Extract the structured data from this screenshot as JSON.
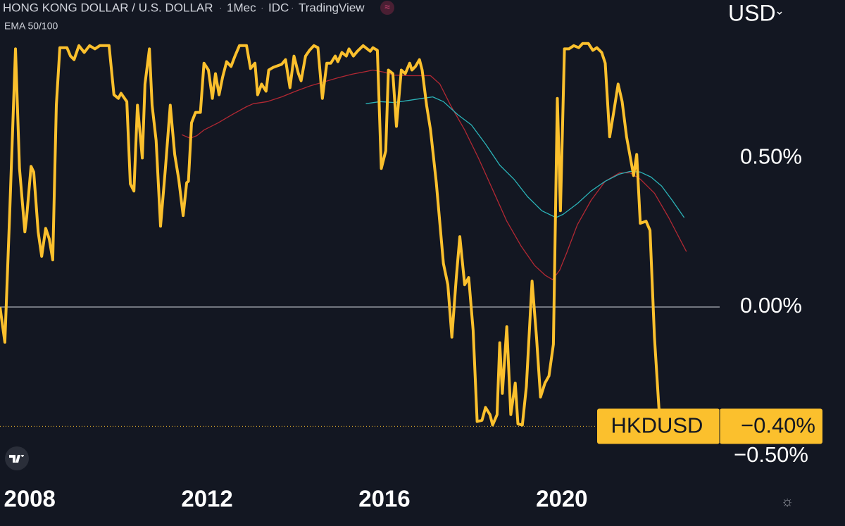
{
  "chart_data": {
    "type": "line",
    "title": "HONG KONG DOLLAR / U.S. DOLLAR",
    "interval": "1Mec",
    "source": "IDC",
    "brand": "TradingView",
    "indicator": "EMA 50/100",
    "currency": "USD",
    "xlim": [
      2007.33,
      2023.56
    ],
    "ylim": [
      -0.6,
      1.03
    ],
    "xticks": [
      2008,
      2012,
      2016,
      2020
    ],
    "yticks": [
      {
        "value": 0.5,
        "label": "0.50%"
      },
      {
        "value": 0,
        "label": "0.00%"
      },
      {
        "value": -0.5,
        "label": "−0.50%"
      }
    ],
    "zero_line": true,
    "price_label": {
      "value": -0.4,
      "label": "−0.40%"
    },
    "series": [
      {
        "name": "HKDUSD",
        "color": "#fbc02d",
        "width": 4,
        "x": [
          2007.33,
          2007.44,
          2007.55,
          2007.68,
          2007.77,
          2007.89,
          2007.93,
          2008.03,
          2008.09,
          2008.19,
          2008.27,
          2008.36,
          2008.44,
          2008.52,
          2008.6,
          2008.68,
          2008.84,
          2008.92,
          2009.0,
          2009.11,
          2009.23,
          2009.35,
          2009.47,
          2009.58,
          2009.79,
          2009.9,
          2010.0,
          2010.06,
          2010.19,
          2010.27,
          2010.35,
          2010.43,
          2010.54,
          2010.6,
          2010.7,
          2010.76,
          2010.85,
          2010.95,
          2011.06,
          2011.17,
          2011.27,
          2011.36,
          2011.46,
          2011.54,
          2011.58,
          2011.65,
          2011.74,
          2011.85,
          2011.93,
          2012.03,
          2012.12,
          2012.19,
          2012.27,
          2012.35,
          2012.44,
          2012.54,
          2012.63,
          2012.73,
          2012.89,
          2012.98,
          2013.08,
          2013.14,
          2013.23,
          2013.33,
          2013.39,
          2013.49,
          2013.58,
          2013.68,
          2013.77,
          2013.87,
          2013.96,
          2014.06,
          2014.12,
          2014.22,
          2014.31,
          2014.41,
          2014.5,
          2014.6,
          2014.7,
          2014.79,
          2014.89,
          2014.95,
          2015.04,
          2015.14,
          2015.2,
          2015.3,
          2015.39,
          2015.52,
          2015.68,
          2015.74,
          2015.84,
          2015.93,
          2016.03,
          2016.09,
          2016.19,
          2016.27,
          2016.38,
          2016.47,
          2016.57,
          2016.62,
          2016.7,
          2016.79,
          2016.85,
          2016.95,
          2017.04,
          2017.17,
          2017.33,
          2017.43,
          2017.52,
          2017.62,
          2017.7,
          2017.81,
          2017.9,
          2018.0,
          2018.09,
          2018.2,
          2018.28,
          2018.38,
          2018.44,
          2018.54,
          2018.6,
          2018.66,
          2018.76,
          2018.85,
          2018.95,
          2019.01,
          2019.11,
          2019.2,
          2019.33,
          2019.43,
          2019.52,
          2019.62,
          2019.71,
          2019.81,
          2019.9,
          2019.97,
          2020.06,
          2020.16,
          2020.27,
          2020.38,
          2020.47,
          2020.6,
          2020.7,
          2020.79,
          2020.9,
          2020.98,
          2021.08,
          2021.17,
          2021.27,
          2021.36,
          2021.46,
          2021.62,
          2021.69,
          2021.77,
          2021.9,
          2021.99,
          2022.09,
          2022.19,
          2022.25
        ],
        "values": [
          0.0,
          -0.118,
          0.323,
          0.866,
          0.465,
          0.252,
          0.3,
          0.472,
          0.453,
          0.252,
          0.17,
          0.264,
          0.229,
          0.158,
          0.677,
          0.87,
          0.87,
          0.842,
          0.83,
          0.877,
          0.854,
          0.877,
          0.866,
          0.877,
          0.877,
          0.712,
          0.7,
          0.717,
          0.689,
          0.413,
          0.389,
          0.677,
          0.5,
          0.748,
          0.866,
          0.677,
          0.559,
          0.271,
          0.465,
          0.677,
          0.512,
          0.429,
          0.307,
          0.417,
          0.422,
          0.618,
          0.653,
          0.653,
          0.818,
          0.795,
          0.7,
          0.783,
          0.712,
          0.771,
          0.823,
          0.807,
          0.842,
          0.877,
          0.877,
          0.8,
          0.818,
          0.712,
          0.748,
          0.724,
          0.795,
          0.804,
          0.809,
          0.814,
          0.83,
          0.736,
          0.842,
          0.783,
          0.759,
          0.842,
          0.861,
          0.877,
          0.87,
          0.7,
          0.818,
          0.818,
          0.842,
          0.823,
          0.854,
          0.842,
          0.866,
          0.842,
          0.858,
          0.877,
          0.858,
          0.87,
          0.861,
          0.465,
          0.524,
          0.795,
          0.783,
          0.606,
          0.795,
          0.783,
          0.818,
          0.795,
          0.807,
          0.83,
          0.795,
          0.677,
          0.594,
          0.417,
          0.146,
          0.075,
          -0.101,
          0.099,
          0.236,
          0.075,
          0.099,
          -0.078,
          -0.384,
          -0.38,
          -0.337,
          -0.361,
          -0.396,
          -0.361,
          -0.12,
          -0.29,
          -0.066,
          -0.361,
          -0.255,
          -0.392,
          -0.396,
          -0.267,
          0.087,
          -0.101,
          -0.302,
          -0.255,
          -0.231,
          -0.125,
          0.7,
          0.323,
          0.866,
          0.866,
          0.877,
          0.87,
          0.884,
          0.884,
          0.861,
          0.87,
          0.854,
          0.818,
          0.571,
          0.653,
          0.748,
          0.689,
          0.571,
          0.441,
          0.512,
          0.281,
          0.288,
          0.257,
          -0.101,
          -0.337,
          -0.4
        ]
      },
      {
        "color": "#b22833",
        "width": 1.3,
        "x": [
          2011.43,
          2011.62,
          2011.77,
          2011.93,
          2012.25,
          2012.57,
          2012.89,
          2013.04,
          2013.36,
          2013.68,
          2014.0,
          2014.31,
          2014.63,
          2014.95,
          2015.27,
          2015.58,
          2015.74,
          2015.98,
          2016.22,
          2016.54,
          2016.85,
          2017.04,
          2017.25,
          2017.49,
          2017.81,
          2018.12,
          2018.44,
          2018.76,
          2019.08,
          2019.39,
          2019.63,
          2019.79,
          2019.95,
          2020.11,
          2020.35,
          2020.66,
          2020.98,
          2021.3,
          2021.54,
          2021.77,
          2022.09,
          2022.41,
          2022.81
        ],
        "values": [
          0.578,
          0.566,
          0.575,
          0.594,
          0.618,
          0.646,
          0.672,
          0.682,
          0.689,
          0.705,
          0.724,
          0.741,
          0.755,
          0.769,
          0.781,
          0.79,
          0.795,
          0.788,
          0.778,
          0.776,
          0.776,
          0.776,
          0.748,
          0.677,
          0.594,
          0.5,
          0.394,
          0.288,
          0.205,
          0.139,
          0.106,
          0.092,
          0.123,
          0.182,
          0.276,
          0.358,
          0.422,
          0.45,
          0.45,
          0.429,
          0.382,
          0.3,
          0.186
        ]
      },
      {
        "color": "#2bb3b8",
        "width": 1.3,
        "x": [
          2015.58,
          2015.9,
          2016.22,
          2016.54,
          2016.85,
          2017.09,
          2017.33,
          2017.65,
          2017.96,
          2018.28,
          2018.6,
          2018.92,
          2019.23,
          2019.55,
          2019.87,
          2020.03,
          2020.35,
          2020.66,
          2020.98,
          2021.3,
          2021.54,
          2021.77,
          2022.01,
          2022.25,
          2022.49,
          2022.76
        ],
        "values": [
          0.682,
          0.689,
          0.686,
          0.693,
          0.7,
          0.705,
          0.689,
          0.646,
          0.611,
          0.547,
          0.476,
          0.429,
          0.37,
          0.323,
          0.3,
          0.311,
          0.347,
          0.389,
          0.422,
          0.446,
          0.455,
          0.453,
          0.436,
          0.406,
          0.358,
          0.3
        ]
      }
    ]
  }
}
